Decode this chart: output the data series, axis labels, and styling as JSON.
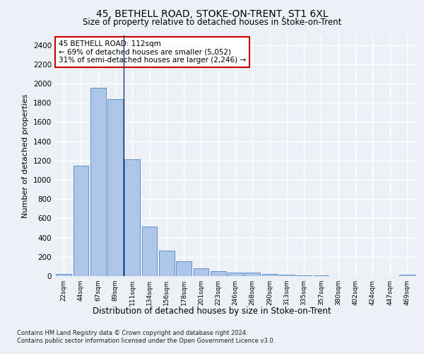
{
  "title": "45, BETHELL ROAD, STOKE-ON-TRENT, ST1 6XL",
  "subtitle": "Size of property relative to detached houses in Stoke-on-Trent",
  "xlabel": "Distribution of detached houses by size in Stoke-on-Trent",
  "ylabel": "Number of detached properties",
  "categories": [
    "22sqm",
    "44sqm",
    "67sqm",
    "89sqm",
    "111sqm",
    "134sqm",
    "156sqm",
    "178sqm",
    "201sqm",
    "223sqm",
    "246sqm",
    "268sqm",
    "290sqm",
    "313sqm",
    "335sqm",
    "357sqm",
    "380sqm",
    "402sqm",
    "424sqm",
    "447sqm",
    "469sqm"
  ],
  "values": [
    25,
    1150,
    1955,
    1840,
    1215,
    515,
    265,
    155,
    80,
    50,
    40,
    40,
    22,
    18,
    10,
    10,
    0,
    0,
    0,
    0,
    18
  ],
  "bar_color": "#aec6e8",
  "bar_edge_color": "#5b8fc9",
  "vline_index": 4,
  "vline_color": "#1a3a6b",
  "annotation_line1": "45 BETHELL ROAD: 112sqm",
  "annotation_line2": "← 69% of detached houses are smaller (5,052)",
  "annotation_line3": "31% of semi-detached houses are larger (2,246) →",
  "annotation_box_color": "#ffffff",
  "annotation_box_edge": "#cc0000",
  "ylim": [
    0,
    2500
  ],
  "yticks": [
    0,
    200,
    400,
    600,
    800,
    1000,
    1200,
    1400,
    1600,
    1800,
    2000,
    2200,
    2400
  ],
  "footnote1": "Contains HM Land Registry data © Crown copyright and database right 2024.",
  "footnote2": "Contains public sector information licensed under the Open Government Licence v3.0.",
  "bg_color": "#edf1f7",
  "plot_bg_color": "#edf1f7",
  "grid_color": "#ffffff"
}
